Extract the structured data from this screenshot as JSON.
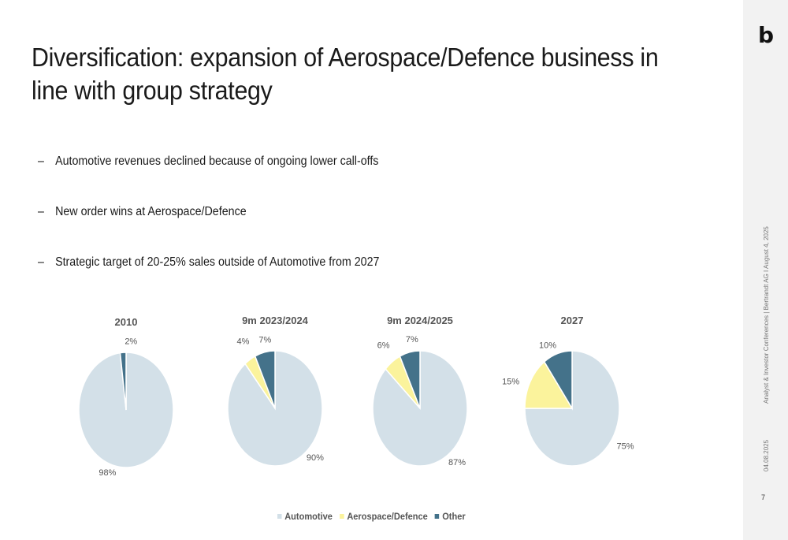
{
  "title": "Diversification: expansion of Aerospace/Defence business in line with group strategy",
  "bullets": [
    "Automotive revenues declined because of ongoing lower call-offs",
    "New order wins at Aerospace/Defence",
    "Strategic target of 20-25% sales outside of Automotive from 2027"
  ],
  "bullet_dash": "–",
  "sidebar": {
    "logo": "b",
    "event": "Analyst & Investor Conferences | Bertrandt AG I August 4, 2025",
    "date": "04.08.2025",
    "page": "7"
  },
  "colors": {
    "Automotive": "#d3e0e8",
    "Aerospace/Defence": "#fbf39c",
    "Other": "#44728a"
  },
  "chart_data": [
    {
      "type": "pie",
      "title": "2010",
      "labels": [
        "Automotive",
        "Other"
      ],
      "values": [
        98,
        2
      ],
      "value_labels": [
        "98%",
        "2%"
      ]
    },
    {
      "type": "pie",
      "title": "9m 2023/2024",
      "labels": [
        "Automotive",
        "Aerospace/Defence",
        "Other"
      ],
      "values": [
        90,
        4,
        7
      ],
      "value_labels": [
        "90%",
        "4%",
        "7%"
      ]
    },
    {
      "type": "pie",
      "title": "9m 2024/2025",
      "labels": [
        "Automotive",
        "Aerospace/Defence",
        "Other"
      ],
      "values": [
        87,
        6,
        7
      ],
      "value_labels": [
        "87%",
        "6%",
        "7%"
      ]
    },
    {
      "type": "pie",
      "title": "2027",
      "labels": [
        "Automotive",
        "Aerospace/Defence",
        "Other"
      ],
      "values": [
        75,
        15,
        10
      ],
      "value_labels": [
        "75%",
        "15%",
        "10%"
      ]
    }
  ],
  "legend": [
    "Automotive",
    "Aerospace/Defence",
    "Other"
  ],
  "legend_placement": "bottom"
}
